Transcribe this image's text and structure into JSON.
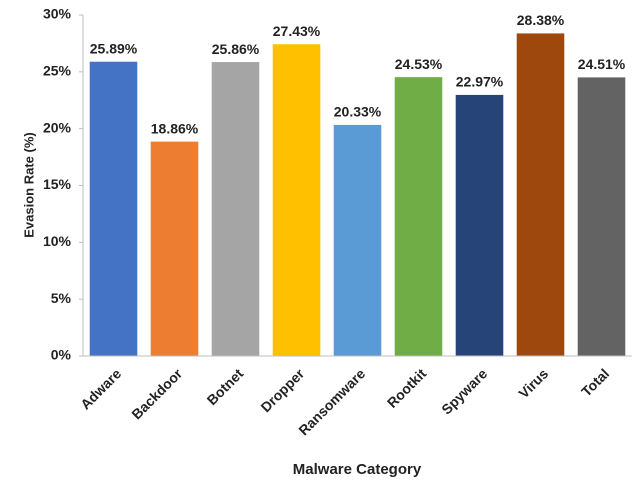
{
  "chart_data": {
    "type": "bar",
    "x_label": "Malware Category",
    "y_label": "Evasion Rate (%)",
    "categories": [
      "Adware",
      "Backdoor",
      "Botnet",
      "Dropper",
      "Ransomware",
      "Rootkit",
      "Spyware",
      "Virus",
      "Total"
    ],
    "values": [
      25.89,
      18.86,
      25.86,
      27.43,
      20.33,
      24.53,
      22.97,
      28.38,
      24.51
    ],
    "value_labels": [
      "25.89%",
      "18.86%",
      "25.86%",
      "27.43%",
      "20.33%",
      "24.53%",
      "22.97%",
      "28.38%",
      "24.51%"
    ],
    "colors": [
      "#4472c4",
      "#ed7d31",
      "#a5a5a5",
      "#ffc000",
      "#5b9bd5",
      "#70ad47",
      "#264478",
      "#9e480e",
      "#636363"
    ],
    "ylim": [
      0,
      30
    ],
    "yticks": [
      {
        "value": 0,
        "label": "0%"
      },
      {
        "value": 5,
        "label": "5%"
      },
      {
        "value": 10,
        "label": "10%"
      },
      {
        "value": 15,
        "label": "15%"
      },
      {
        "value": 20,
        "label": "20%"
      },
      {
        "value": 25,
        "label": "25%"
      },
      {
        "value": 30,
        "label": "30%"
      }
    ],
    "grid": false
  }
}
